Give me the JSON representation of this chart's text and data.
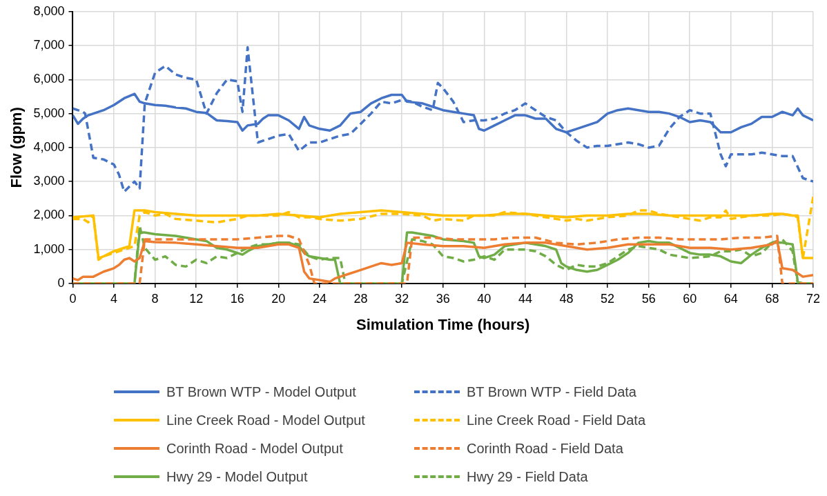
{
  "chart_data": {
    "type": "line",
    "xlabel": "Simulation Time (hours)",
    "ylabel": "Flow (gpm)",
    "xlim": [
      0,
      72
    ],
    "xticks": [
      0,
      4,
      8,
      12,
      16,
      20,
      24,
      28,
      32,
      36,
      40,
      44,
      48,
      52,
      56,
      60,
      64,
      68,
      72
    ],
    "ylim": [
      0,
      8000
    ],
    "yticks": [
      0,
      {
        "value": 1000,
        "label": "1,000"
      },
      {
        "value": 2000,
        "label": "2,000"
      },
      {
        "value": 3000,
        "label": "3,000"
      },
      {
        "value": 4000,
        "label": "4,000"
      },
      {
        "value": 5000,
        "label": "5,000"
      },
      {
        "value": 6000,
        "label": "6,000"
      },
      {
        "value": 7000,
        "label": "7,000"
      },
      {
        "value": 8000,
        "label": "8,000"
      }
    ],
    "grid": true,
    "legend": "bottom",
    "marker": "none",
    "series": [
      {
        "name": "BT Brown WTP - Model Output",
        "color": "#4472c4",
        "line_style": "solid",
        "x": [
          0,
          0.5,
          1,
          1.5,
          2,
          3,
          4,
          5,
          6,
          6.5,
          7,
          8,
          9,
          10,
          11,
          12,
          13,
          14,
          15,
          16,
          16.5,
          17,
          18,
          18.5,
          19,
          20,
          21,
          22,
          22.5,
          23,
          24,
          25,
          26,
          27,
          28,
          29,
          30,
          31,
          32,
          32.5,
          34,
          35,
          36,
          37,
          38,
          39,
          39.5,
          40,
          41,
          42,
          43,
          44,
          45,
          46,
          47,
          48,
          49,
          50,
          51,
          52,
          53,
          54,
          55,
          56,
          57,
          58,
          59,
          60,
          61,
          62,
          63,
          64,
          65,
          66,
          67,
          68,
          69,
          70,
          70.5,
          71,
          72
        ],
        "values": [
          4950,
          4700,
          4850,
          4950,
          5000,
          5100,
          5250,
          5450,
          5580,
          5350,
          5300,
          5250,
          5230,
          5180,
          5150,
          5050,
          5020,
          4800,
          4780,
          4750,
          4500,
          4650,
          4700,
          4850,
          4950,
          4950,
          4800,
          4550,
          4900,
          4650,
          4550,
          4500,
          4650,
          5000,
          5050,
          5300,
          5450,
          5550,
          5550,
          5350,
          5300,
          5200,
          5100,
          5050,
          5000,
          4950,
          4550,
          4500,
          4650,
          4800,
          4950,
          4950,
          4850,
          4850,
          4550,
          4450,
          4550,
          4650,
          4750,
          5000,
          5100,
          5150,
          5100,
          5050,
          5050,
          5000,
          4900,
          4750,
          4800,
          4750,
          4450,
          4450,
          4600,
          4700,
          4900,
          4900,
          5050,
          4950,
          5150,
          4950,
          4800
        ]
      },
      {
        "name": "BT Brown WTP - Field Data",
        "color": "#4472c4",
        "line_style": "dashed",
        "x": [
          0,
          1,
          1.2,
          2,
          3,
          4,
          4.5,
          5,
          5.5,
          6,
          6.5,
          7,
          8,
          9,
          10,
          11,
          12,
          13,
          14,
          15,
          16,
          16.5,
          17,
          18,
          19,
          20,
          21,
          22,
          23,
          24,
          25,
          26,
          27,
          28,
          29,
          30,
          31,
          32,
          33,
          34,
          35,
          35.5,
          36,
          37,
          38,
          39,
          40,
          41,
          42,
          43,
          44,
          45,
          46,
          47,
          48,
          49,
          50,
          51,
          52,
          53,
          54,
          55,
          56,
          57,
          58,
          59,
          60,
          61,
          62,
          63,
          63.5,
          64,
          65,
          66,
          67,
          68,
          69,
          70,
          71,
          72
        ],
        "values": [
          5150,
          5050,
          5000,
          3700,
          3650,
          3500,
          3200,
          2700,
          2850,
          3000,
          2800,
          5300,
          6200,
          6400,
          6150,
          6050,
          6000,
          5000,
          5600,
          6000,
          5950,
          5050,
          6950,
          4150,
          4250,
          4350,
          4400,
          3900,
          4150,
          4150,
          4250,
          4350,
          4400,
          4700,
          5000,
          5350,
          5300,
          5400,
          5350,
          5200,
          5100,
          5900,
          5750,
          5350,
          4750,
          4800,
          4800,
          4850,
          5000,
          5100,
          5300,
          5100,
          4900,
          4800,
          4450,
          4200,
          4000,
          4050,
          4050,
          4100,
          4150,
          4100,
          4000,
          4050,
          4550,
          4900,
          5100,
          5000,
          5000,
          3800,
          3450,
          3800,
          3800,
          3800,
          3850,
          3800,
          3750,
          3750,
          3100,
          3000
        ]
      },
      {
        "name": "Line Creek Road - Model Output",
        "color": "#ffc000",
        "line_style": "solid",
        "x": [
          0,
          2,
          2.5,
          3,
          4,
          5,
          5.5,
          6,
          7,
          8,
          10,
          12,
          14,
          16,
          18,
          20,
          22,
          24,
          26,
          28,
          30,
          32,
          34,
          36,
          38,
          40,
          42,
          44,
          46,
          48,
          50,
          52,
          54,
          56,
          58,
          60,
          62,
          64,
          66,
          68,
          69,
          70,
          70.5,
          71,
          72
        ],
        "values": [
          1950,
          2000,
          750,
          800,
          950,
          1050,
          1100,
          2150,
          2150,
          2100,
          2050,
          2000,
          2000,
          2000,
          2000,
          2050,
          2000,
          1950,
          2050,
          2100,
          2150,
          2100,
          2050,
          2000,
          2000,
          2000,
          2050,
          2050,
          2000,
          1950,
          2000,
          2000,
          2050,
          2050,
          2000,
          2000,
          2000,
          2000,
          2000,
          2050,
          2050,
          2000,
          2000,
          750,
          750
        ]
      },
      {
        "name": "Line Creek Road - Field Data",
        "color": "#ffc000",
        "line_style": "dashed",
        "x": [
          0,
          1,
          1.5,
          2,
          2.5,
          3,
          4,
          5,
          6,
          6.5,
          7,
          8,
          9,
          10,
          12,
          14,
          16,
          17,
          18,
          20,
          21,
          22,
          23,
          24,
          26,
          28,
          30,
          32,
          34,
          35,
          36,
          38,
          39,
          41,
          42,
          44,
          46,
          48,
          49,
          50,
          52,
          54,
          55,
          56,
          57,
          58,
          60,
          61,
          62,
          63,
          63.5,
          64,
          66,
          68,
          69,
          70,
          70.5,
          71,
          72
        ],
        "values": [
          1900,
          1900,
          1800,
          2000,
          700,
          800,
          900,
          1000,
          1100,
          2000,
          2100,
          2000,
          2050,
          1900,
          1850,
          1800,
          1900,
          2000,
          2000,
          2000,
          2100,
          1950,
          1950,
          1900,
          1850,
          1900,
          2050,
          2050,
          2000,
          1850,
          1900,
          1850,
          2000,
          2000,
          2100,
          2050,
          1950,
          1850,
          1900,
          1850,
          1950,
          2000,
          2150,
          2150,
          2050,
          2000,
          1900,
          1850,
          1950,
          1950,
          2150,
          1900,
          2000,
          2000,
          2050,
          2000,
          1950,
          750,
          2550
        ]
      },
      {
        "name": "Corinth Road - Model Output",
        "color": "#ed7d31",
        "line_style": "solid",
        "x": [
          0,
          0.5,
          1,
          2,
          3,
          4,
          4.5,
          5,
          5.5,
          6,
          6.5,
          7,
          8,
          10,
          12,
          14,
          16,
          18,
          20,
          21,
          22,
          22.5,
          23,
          24,
          25,
          25.5,
          26,
          27,
          28,
          29,
          30,
          31,
          32,
          32.5,
          34,
          36,
          38,
          40,
          42,
          44,
          46,
          48,
          49,
          50,
          52,
          54,
          56,
          58,
          60,
          62,
          64,
          66,
          68,
          68.5,
          69,
          70,
          71,
          72
        ],
        "values": [
          150,
          100,
          200,
          200,
          350,
          450,
          550,
          700,
          750,
          650,
          750,
          1250,
          1220,
          1200,
          1150,
          1100,
          1050,
          1050,
          1150,
          1150,
          1050,
          350,
          150,
          100,
          50,
          150,
          200,
          300,
          400,
          500,
          600,
          550,
          600,
          1200,
          1150,
          1100,
          1100,
          1050,
          1150,
          1200,
          1200,
          1100,
          1050,
          1000,
          1050,
          1150,
          1150,
          1150,
          1050,
          1050,
          1000,
          1050,
          1150,
          1250,
          450,
          400,
          200,
          250
        ]
      },
      {
        "name": "Corinth Road - Field Data",
        "color": "#ed7d31",
        "line_style": "dashed",
        "x": [
          0,
          6.5,
          7,
          8,
          10,
          12,
          14,
          16,
          18,
          20,
          21,
          22,
          23,
          23.5,
          32.5,
          33,
          35,
          37,
          39,
          41,
          43,
          45,
          47,
          49,
          51,
          53,
          55,
          57,
          59,
          61,
          63,
          65,
          67,
          68.5,
          69,
          72
        ],
        "values": [
          0,
          0,
          1300,
          1300,
          1300,
          1300,
          1300,
          1300,
          1350,
          1400,
          1400,
          1300,
          550,
          0,
          0,
          1350,
          1350,
          1300,
          1300,
          1300,
          1350,
          1350,
          1200,
          1150,
          1200,
          1300,
          1350,
          1350,
          1300,
          1300,
          1300,
          1350,
          1350,
          1400,
          0,
          0
        ]
      },
      {
        "name": "Hwy 29 - Model Output",
        "color": "#70ad47",
        "line_style": "solid",
        "x": [
          0,
          6,
          6.5,
          7,
          8,
          10,
          12,
          13,
          14,
          15,
          16,
          16.5,
          17,
          18,
          19,
          20,
          21,
          22,
          22.5,
          23,
          24,
          25,
          25.5,
          26,
          32,
          32.5,
          33,
          35,
          36,
          38,
          39,
          39.5,
          40,
          41,
          42,
          43,
          44,
          45,
          46,
          47,
          47.5,
          48,
          49,
          50,
          51,
          52,
          53,
          54,
          55,
          56,
          57,
          58,
          59,
          60,
          61,
          62,
          63,
          64,
          65,
          66,
          67,
          68,
          69,
          70,
          70.5,
          71,
          72
        ],
        "values": [
          0,
          0,
          1500,
          1500,
          1450,
          1400,
          1300,
          1250,
          1050,
          1000,
          900,
          850,
          950,
          1100,
          1150,
          1200,
          1200,
          1100,
          900,
          800,
          750,
          700,
          700,
          0,
          0,
          1500,
          1500,
          1400,
          1300,
          1250,
          1200,
          800,
          750,
          850,
          1100,
          1150,
          1200,
          1150,
          1100,
          1000,
          600,
          500,
          400,
          350,
          400,
          550,
          700,
          900,
          1200,
          1250,
          1200,
          1200,
          1050,
          900,
          850,
          850,
          800,
          650,
          600,
          850,
          1050,
          1200,
          1200,
          1150,
          50,
          0,
          0
        ]
      },
      {
        "name": "Hwy 29 - Field Data",
        "color": "#70ad47",
        "line_style": "dashed",
        "x": [
          0,
          6,
          6.5,
          7,
          8,
          9,
          10,
          11,
          12,
          13,
          14,
          15,
          16,
          17,
          18,
          19,
          20,
          21,
          22,
          23,
          24,
          25,
          26,
          26.5,
          32,
          33,
          34,
          35,
          36,
          37,
          38,
          39,
          40,
          41,
          42,
          43,
          44,
          45,
          46,
          47,
          48,
          49,
          50,
          51,
          52,
          53,
          54,
          55,
          56,
          57,
          58,
          59,
          60,
          62,
          63,
          64,
          65,
          66,
          67,
          68,
          69,
          70,
          70.5,
          72
        ],
        "values": [
          0,
          0,
          1700,
          1050,
          700,
          800,
          550,
          500,
          700,
          600,
          800,
          750,
          900,
          1050,
          1150,
          1150,
          1200,
          1200,
          1150,
          800,
          700,
          750,
          750,
          0,
          0,
          1300,
          1250,
          1150,
          800,
          750,
          650,
          700,
          800,
          700,
          1000,
          1000,
          1000,
          950,
          800,
          550,
          400,
          550,
          500,
          500,
          600,
          800,
          1000,
          1100,
          1050,
          1000,
          850,
          800,
          750,
          800,
          950,
          950,
          1000,
          800,
          900,
          1200,
          1300,
          950,
          0,
          0
        ]
      }
    ]
  }
}
